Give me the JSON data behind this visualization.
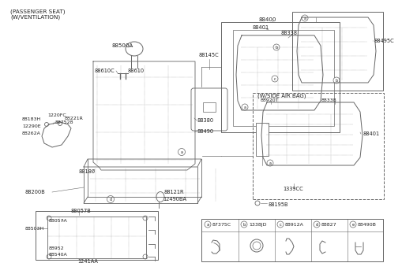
{
  "bg": "#ffffff",
  "lc": "#666666",
  "tc": "#222222",
  "fs": 5.0,
  "fw": 4.8,
  "fh": 3.28,
  "dpi": 100,
  "labels": {
    "title1": "(PASSENGER SEAT)",
    "title2": "(W/VENTILATION)",
    "88400": "88400",
    "88401": "88401",
    "88338": "88338",
    "88495C": "88495C",
    "88500A": "88500A",
    "88145C": "88145C",
    "88610C": "88610C",
    "88610": "88610",
    "88380": "88380",
    "88490": "88490",
    "88183H": "88183H",
    "1220FC": "1220FC",
    "887528": "887528",
    "88221R": "88221R",
    "12290E": "12290E",
    "88262A": "88262A",
    "88180": "88180",
    "88200B": "88200B",
    "88121R": "88121R",
    "12490BA": "12490BA",
    "88195B": "88195B",
    "wside": "(W/SIDE AIR BAG)",
    "88920T": "88920T",
    "1339CC": "1339CC",
    "88057B": "88057B",
    "88057A": "88057A",
    "88503H": "88503H",
    "88952": "88952",
    "88540A": "88540A",
    "1241AA": "1241AA",
    "87375C": "87375C",
    "1338JD": "1338JD",
    "88912A": "88912A",
    "88827": "88827",
    "88490B": "88490B"
  }
}
